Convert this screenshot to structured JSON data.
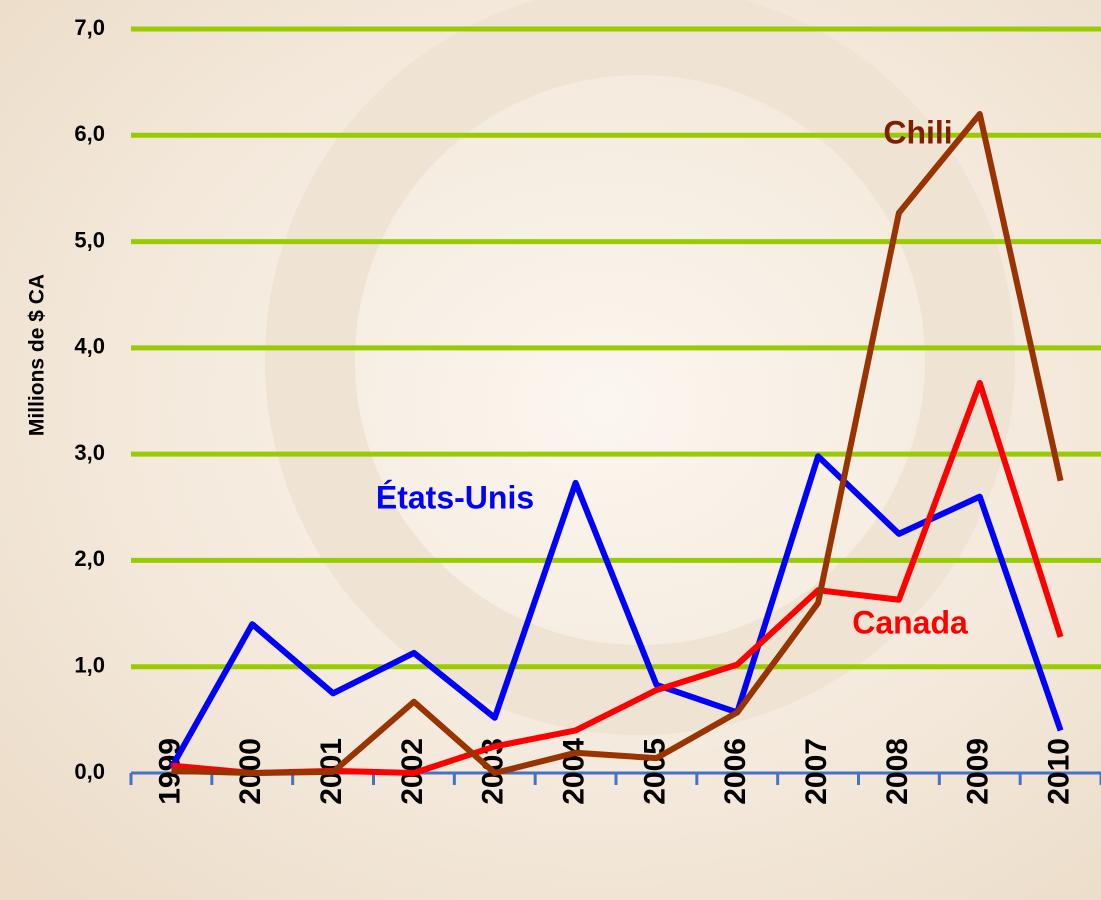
{
  "chart_data": {
    "type": "line",
    "y_label": "Millions de $ CA",
    "categories": [
      "1999",
      "2000",
      "2001",
      "2002",
      "2003",
      "2004",
      "2005",
      "2006",
      "2007",
      "2008",
      "2009",
      "2010"
    ],
    "series": [
      {
        "name": "États-Unis",
        "color": "#0000ff",
        "values": [
          0.05,
          1.4,
          0.75,
          1.13,
          0.52,
          2.73,
          0.83,
          0.57,
          2.98,
          2.25,
          2.6,
          0.4
        ]
      },
      {
        "name": "Chili",
        "color": "#993300",
        "values": [
          0.02,
          0.0,
          0.01,
          0.67,
          0.0,
          0.19,
          0.14,
          0.57,
          1.6,
          5.27,
          6.2,
          2.75
        ]
      },
      {
        "name": "Canada",
        "color": "#ff0000",
        "values": [
          0.07,
          0.0,
          0.02,
          0.0,
          0.25,
          0.4,
          0.78,
          1.02,
          1.72,
          1.63,
          3.67,
          1.28
        ]
      }
    ],
    "ylim": [
      0,
      7
    ],
    "yticks": [
      {
        "value": 0,
        "label": "0,0"
      },
      {
        "value": 1,
        "label": "1,0"
      },
      {
        "value": 2,
        "label": "2,0"
      },
      {
        "value": 3,
        "label": "3,0"
      },
      {
        "value": 4,
        "label": "4,0"
      },
      {
        "value": 5,
        "label": "5,0"
      },
      {
        "value": 6,
        "label": "6,0"
      },
      {
        "value": 7,
        "label": "7,0"
      }
    ],
    "grid": true,
    "grid_color": "#99cc00",
    "axis_color": "#4472c4"
  }
}
